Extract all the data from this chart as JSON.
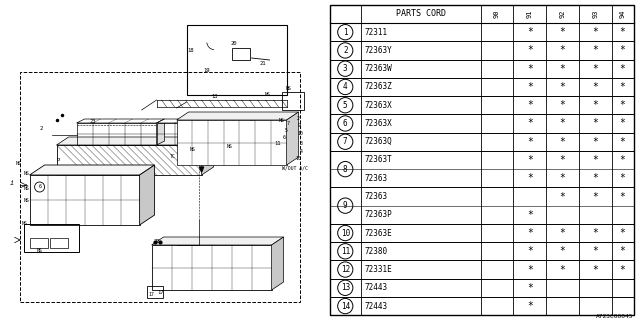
{
  "diagram_id": "A723C00045",
  "rows": [
    {
      "num": "1",
      "part": "72311",
      "cols": [
        "",
        "*",
        "*",
        "*",
        "*"
      ],
      "double": false
    },
    {
      "num": "2",
      "part": "72363Y",
      "cols": [
        "",
        "*",
        "*",
        "*",
        "*"
      ],
      "double": false
    },
    {
      "num": "3",
      "part": "72363W",
      "cols": [
        "",
        "*",
        "*",
        "*",
        "*"
      ],
      "double": false
    },
    {
      "num": "4",
      "part": "72363Z",
      "cols": [
        "",
        "*",
        "*",
        "*",
        "*"
      ],
      "double": false
    },
    {
      "num": "5",
      "part": "72363X",
      "cols": [
        "",
        "*",
        "*",
        "*",
        "*"
      ],
      "double": false
    },
    {
      "num": "6",
      "part": "72363X",
      "cols": [
        "",
        "*",
        "*",
        "*",
        "*"
      ],
      "double": false
    },
    {
      "num": "7",
      "part": "72363Q",
      "cols": [
        "",
        "*",
        "*",
        "*",
        "*"
      ],
      "double": false
    },
    {
      "num": "8",
      "part": "72363T",
      "cols": [
        "",
        "*",
        "*",
        "*",
        "*"
      ],
      "double": true,
      "part2": "72363",
      "cols2": [
        "",
        "*",
        "*",
        "*",
        "*"
      ]
    },
    {
      "num": "9",
      "part": "72363",
      "cols": [
        "",
        "",
        "*",
        "*",
        "*"
      ],
      "double": true,
      "part2": "72363P",
      "cols2": [
        "",
        "*",
        "",
        "",
        ""
      ]
    },
    {
      "num": "10",
      "part": "72363E",
      "cols": [
        "",
        "*",
        "*",
        "*",
        "*"
      ],
      "double": false
    },
    {
      "num": "11",
      "part": "72380",
      "cols": [
        "",
        "*",
        "*",
        "*",
        "*"
      ],
      "double": false
    },
    {
      "num": "12",
      "part": "72331E",
      "cols": [
        "",
        "*",
        "*",
        "*",
        "*"
      ],
      "double": false
    },
    {
      "num": "13",
      "part": "72443",
      "cols": [
        "",
        "*",
        "",
        "",
        ""
      ],
      "double": false
    },
    {
      "num": "14",
      "part": "72443",
      "cols": [
        "",
        "*",
        "",
        "",
        ""
      ],
      "double": false
    }
  ],
  "years": [
    "90",
    "91",
    "92",
    "93",
    "94"
  ],
  "bg_color": "#ffffff"
}
